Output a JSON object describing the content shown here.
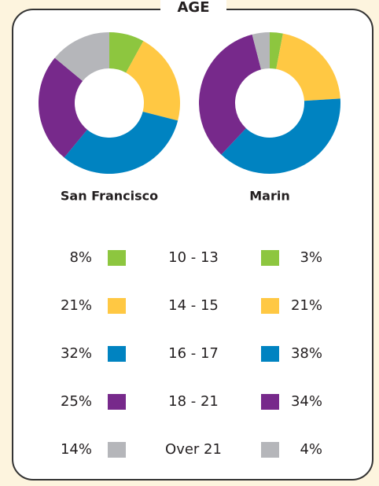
{
  "title": "AGE",
  "chart_data": [
    {
      "type": "pie",
      "title": "San Francisco",
      "categories": [
        "10 - 13",
        "14 - 15",
        "16 - 17",
        "18 - 21",
        "Over 21"
      ],
      "values": [
        8,
        21,
        32,
        25,
        14
      ],
      "value_labels": [
        "8%",
        "21%",
        "32%",
        "25%",
        "14%"
      ],
      "colors": [
        "#8dc63f",
        "#ffc843",
        "#0083c1",
        "#77298b",
        "#b5b6ba"
      ]
    },
    {
      "type": "pie",
      "title": "Marin",
      "values": [
        3,
        21,
        38,
        34,
        4
      ],
      "value_labels": [
        "3%",
        "21%",
        "38%",
        "34%",
        "4%"
      ],
      "colors": [
        "#8dc63f",
        "#ffc843",
        "#0083c1",
        "#77298b",
        "#b5b6ba"
      ]
    }
  ]
}
